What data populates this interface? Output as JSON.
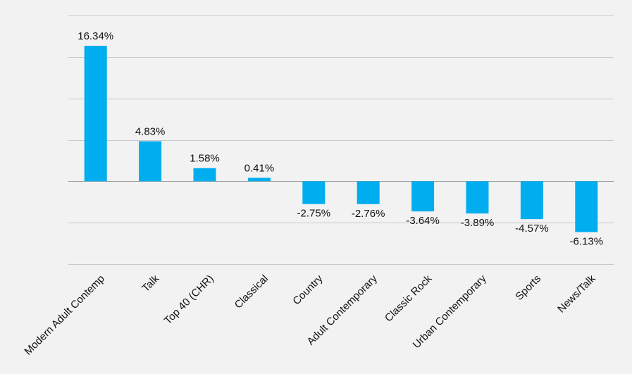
{
  "chart_data": {
    "type": "bar",
    "categories": [
      "Modern Adult Contemp",
      "Talk",
      "Top 40 (CHR)",
      "Classical",
      "Country",
      "Adult Contemporary",
      "Classic Rock",
      "Urban Contemporary",
      "Sports",
      "News/Talk"
    ],
    "values": [
      16.34,
      4.83,
      1.58,
      0.41,
      -2.75,
      -2.76,
      -3.64,
      -3.89,
      -4.57,
      -6.13
    ],
    "data_labels": [
      "16.34%",
      "4.83%",
      "1.58%",
      "0.41%",
      "-2.75%",
      "-2.76%",
      "-3.64%",
      "-3.89%",
      "-4.57%",
      "-6.13%"
    ],
    "ylim": [
      -10,
      20
    ],
    "grid": true,
    "legend": "none",
    "bar_color": "#00adef"
  }
}
